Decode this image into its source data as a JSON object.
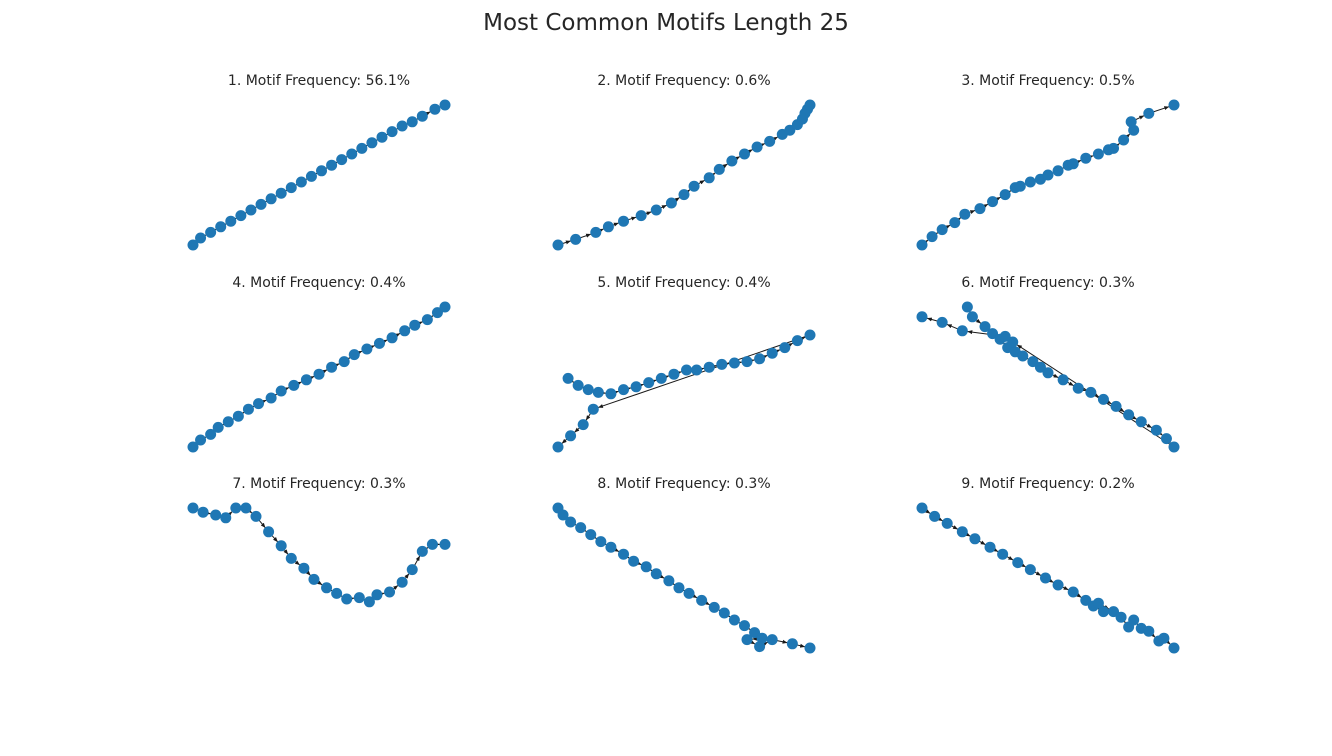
{
  "figure": {
    "title": "Most Common Motifs Length 25"
  },
  "chart_data": [
    {
      "type": "scatter",
      "title": "1. Motif Frequency: 56.1%",
      "node_color": "#1f77b4",
      "edge_color": "#1a1a1a",
      "axes": "off",
      "points": [
        [
          0,
          0
        ],
        [
          0.03,
          0.05
        ],
        [
          0.07,
          0.09
        ],
        [
          0.11,
          0.13
        ],
        [
          0.15,
          0.17
        ],
        [
          0.19,
          0.21
        ],
        [
          0.23,
          0.25
        ],
        [
          0.27,
          0.29
        ],
        [
          0.31,
          0.33
        ],
        [
          0.35,
          0.37
        ],
        [
          0.39,
          0.41
        ],
        [
          0.43,
          0.45
        ],
        [
          0.47,
          0.49
        ],
        [
          0.51,
          0.53
        ],
        [
          0.55,
          0.57
        ],
        [
          0.59,
          0.61
        ],
        [
          0.63,
          0.65
        ],
        [
          0.67,
          0.69
        ],
        [
          0.71,
          0.73
        ],
        [
          0.75,
          0.77
        ],
        [
          0.79,
          0.81
        ],
        [
          0.83,
          0.85
        ],
        [
          0.87,
          0.88
        ],
        [
          0.91,
          0.92
        ],
        [
          0.96,
          0.97
        ],
        [
          1,
          1
        ]
      ]
    },
    {
      "type": "scatter",
      "title": "2. Motif Frequency: 0.6%",
      "node_color": "#1f77b4",
      "edge_color": "#1a1a1a",
      "axes": "off",
      "points": [
        [
          0,
          0
        ],
        [
          0.07,
          0.04
        ],
        [
          0.15,
          0.09
        ],
        [
          0.2,
          0.13
        ],
        [
          0.26,
          0.17
        ],
        [
          0.33,
          0.21
        ],
        [
          0.39,
          0.25
        ],
        [
          0.45,
          0.3
        ],
        [
          0.5,
          0.36
        ],
        [
          0.54,
          0.42
        ],
        [
          0.6,
          0.48
        ],
        [
          0.64,
          0.54
        ],
        [
          0.69,
          0.6
        ],
        [
          0.74,
          0.65
        ],
        [
          0.79,
          0.7
        ],
        [
          0.84,
          0.74
        ],
        [
          0.89,
          0.79
        ],
        [
          0.92,
          0.82
        ],
        [
          0.95,
          0.86
        ],
        [
          0.97,
          0.9
        ],
        [
          0.98,
          0.94
        ],
        [
          0.99,
          0.97
        ],
        [
          1,
          1
        ]
      ]
    },
    {
      "type": "scatter",
      "title": "3. Motif Frequency: 0.5%",
      "node_color": "#1f77b4",
      "edge_color": "#1a1a1a",
      "axes": "off",
      "points": [
        [
          0,
          0
        ],
        [
          0.04,
          0.06
        ],
        [
          0.08,
          0.11
        ],
        [
          0.13,
          0.16
        ],
        [
          0.17,
          0.22
        ],
        [
          0.23,
          0.26
        ],
        [
          0.28,
          0.31
        ],
        [
          0.33,
          0.36
        ],
        [
          0.37,
          0.41
        ],
        [
          0.39,
          0.42
        ],
        [
          0.43,
          0.45
        ],
        [
          0.47,
          0.47
        ],
        [
          0.5,
          0.5
        ],
        [
          0.54,
          0.53
        ],
        [
          0.58,
          0.57
        ],
        [
          0.6,
          0.58
        ],
        [
          0.65,
          0.62
        ],
        [
          0.7,
          0.65
        ],
        [
          0.74,
          0.68
        ],
        [
          0.76,
          0.69
        ],
        [
          0.8,
          0.75
        ],
        [
          0.84,
          0.82
        ],
        [
          0.83,
          0.88
        ],
        [
          0.9,
          0.94
        ],
        [
          1,
          1
        ]
      ]
    },
    {
      "type": "scatter",
      "title": "4. Motif Frequency: 0.4%",
      "node_color": "#1f77b4",
      "edge_color": "#1a1a1a",
      "axes": "off",
      "points": [
        [
          0,
          0
        ],
        [
          0.03,
          0.05
        ],
        [
          0.07,
          0.09
        ],
        [
          0.1,
          0.14
        ],
        [
          0.14,
          0.18
        ],
        [
          0.18,
          0.22
        ],
        [
          0.22,
          0.27
        ],
        [
          0.26,
          0.31
        ],
        [
          0.31,
          0.35
        ],
        [
          0.35,
          0.4
        ],
        [
          0.4,
          0.44
        ],
        [
          0.45,
          0.48
        ],
        [
          0.5,
          0.52
        ],
        [
          0.55,
          0.57
        ],
        [
          0.6,
          0.61
        ],
        [
          0.64,
          0.66
        ],
        [
          0.69,
          0.7
        ],
        [
          0.74,
          0.74
        ],
        [
          0.79,
          0.78
        ],
        [
          0.84,
          0.83
        ],
        [
          0.88,
          0.87
        ],
        [
          0.93,
          0.91
        ],
        [
          0.97,
          0.96
        ],
        [
          1,
          1
        ]
      ]
    },
    {
      "type": "scatter",
      "title": "5. Motif Frequency: 0.4%",
      "node_color": "#1f77b4",
      "edge_color": "#1a1a1a",
      "axes": "off",
      "points": [
        [
          0.04,
          0.49
        ],
        [
          0.08,
          0.44
        ],
        [
          0.12,
          0.41
        ],
        [
          0.16,
          0.39
        ],
        [
          0.21,
          0.38
        ],
        [
          0.26,
          0.41
        ],
        [
          0.31,
          0.43
        ],
        [
          0.36,
          0.46
        ],
        [
          0.41,
          0.49
        ],
        [
          0.46,
          0.52
        ],
        [
          0.51,
          0.55
        ],
        [
          0.55,
          0.55
        ],
        [
          0.6,
          0.57
        ],
        [
          0.65,
          0.59
        ],
        [
          0.7,
          0.6
        ],
        [
          0.75,
          0.61
        ],
        [
          0.8,
          0.63
        ],
        [
          0.85,
          0.67
        ],
        [
          0.9,
          0.71
        ],
        [
          0.95,
          0.76
        ],
        [
          1,
          0.8
        ],
        [
          0.14,
          0.27
        ],
        [
          0.1,
          0.16
        ],
        [
          0.05,
          0.08
        ],
        [
          0,
          0
        ]
      ]
    },
    {
      "type": "scatter",
      "title": "6. Motif Frequency: 0.3%",
      "node_color": "#1f77b4",
      "edge_color": "#1a1a1a",
      "axes": "off",
      "points": [
        [
          0.18,
          1
        ],
        [
          0.2,
          0.93
        ],
        [
          0.25,
          0.86
        ],
        [
          0.28,
          0.81
        ],
        [
          0.31,
          0.77
        ],
        [
          0.34,
          0.71
        ],
        [
          0.37,
          0.68
        ],
        [
          0.4,
          0.65
        ],
        [
          0.44,
          0.61
        ],
        [
          0.47,
          0.57
        ],
        [
          0.5,
          0.53
        ],
        [
          0.56,
          0.48
        ],
        [
          0.62,
          0.42
        ],
        [
          0.67,
          0.39
        ],
        [
          0.72,
          0.34
        ],
        [
          0.77,
          0.29
        ],
        [
          0.82,
          0.23
        ],
        [
          0.87,
          0.18
        ],
        [
          0.93,
          0.12
        ],
        [
          0.97,
          0.06
        ],
        [
          1,
          0
        ],
        [
          0.36,
          0.75
        ],
        [
          0.33,
          0.79
        ],
        [
          0.16,
          0.83
        ],
        [
          0.08,
          0.89
        ],
        [
          0,
          0.93
        ]
      ]
    },
    {
      "type": "scatter",
      "title": "7. Motif Frequency: 0.3%",
      "node_color": "#1f77b4",
      "edge_color": "#1a1a1a",
      "axes": "off",
      "points": [
        [
          0,
          1
        ],
        [
          0.04,
          0.97
        ],
        [
          0.09,
          0.95
        ],
        [
          0.13,
          0.93
        ],
        [
          0.17,
          1
        ],
        [
          0.21,
          1
        ],
        [
          0.25,
          0.94
        ],
        [
          0.3,
          0.83
        ],
        [
          0.35,
          0.73
        ],
        [
          0.39,
          0.64
        ],
        [
          0.44,
          0.57
        ],
        [
          0.48,
          0.49
        ],
        [
          0.53,
          0.43
        ],
        [
          0.57,
          0.39
        ],
        [
          0.61,
          0.35
        ],
        [
          0.66,
          0.36
        ],
        [
          0.7,
          0.33
        ],
        [
          0.73,
          0.38
        ],
        [
          0.78,
          0.4
        ],
        [
          0.83,
          0.47
        ],
        [
          0.87,
          0.56
        ],
        [
          0.91,
          0.69
        ],
        [
          0.95,
          0.74
        ],
        [
          1,
          0.74
        ]
      ]
    },
    {
      "type": "scatter",
      "title": "8. Motif Frequency: 0.3%",
      "node_color": "#1f77b4",
      "edge_color": "#1a1a1a",
      "axes": "off",
      "points": [
        [
          0,
          1
        ],
        [
          0.02,
          0.95
        ],
        [
          0.05,
          0.9
        ],
        [
          0.09,
          0.86
        ],
        [
          0.13,
          0.81
        ],
        [
          0.17,
          0.76
        ],
        [
          0.21,
          0.72
        ],
        [
          0.26,
          0.67
        ],
        [
          0.3,
          0.62
        ],
        [
          0.35,
          0.58
        ],
        [
          0.39,
          0.53
        ],
        [
          0.44,
          0.48
        ],
        [
          0.48,
          0.43
        ],
        [
          0.52,
          0.39
        ],
        [
          0.57,
          0.34
        ],
        [
          0.62,
          0.29
        ],
        [
          0.66,
          0.25
        ],
        [
          0.7,
          0.2
        ],
        [
          0.74,
          0.16
        ],
        [
          0.78,
          0.11
        ],
        [
          0.81,
          0.07
        ],
        [
          0.75,
          0.06
        ],
        [
          0.8,
          0.01
        ],
        [
          0.85,
          0.06
        ],
        [
          0.93,
          0.03
        ],
        [
          1,
          0
        ]
      ]
    },
    {
      "type": "scatter",
      "title": "9. Motif Frequency: 0.2%",
      "node_color": "#1f77b4",
      "edge_color": "#1a1a1a",
      "axes": "off",
      "points": [
        [
          0,
          1
        ],
        [
          0.05,
          0.94
        ],
        [
          0.1,
          0.89
        ],
        [
          0.16,
          0.83
        ],
        [
          0.21,
          0.78
        ],
        [
          0.27,
          0.72
        ],
        [
          0.32,
          0.67
        ],
        [
          0.38,
          0.61
        ],
        [
          0.43,
          0.56
        ],
        [
          0.49,
          0.5
        ],
        [
          0.54,
          0.45
        ],
        [
          0.6,
          0.4
        ],
        [
          0.65,
          0.34
        ],
        [
          0.68,
          0.3
        ],
        [
          0.72,
          0.26
        ],
        [
          0.7,
          0.32
        ],
        [
          0.76,
          0.26
        ],
        [
          0.79,
          0.22
        ],
        [
          0.82,
          0.15
        ],
        [
          0.84,
          0.2
        ],
        [
          0.87,
          0.14
        ],
        [
          0.9,
          0.12
        ],
        [
          0.94,
          0.05
        ],
        [
          0.96,
          0.07
        ],
        [
          1,
          0
        ]
      ]
    }
  ]
}
